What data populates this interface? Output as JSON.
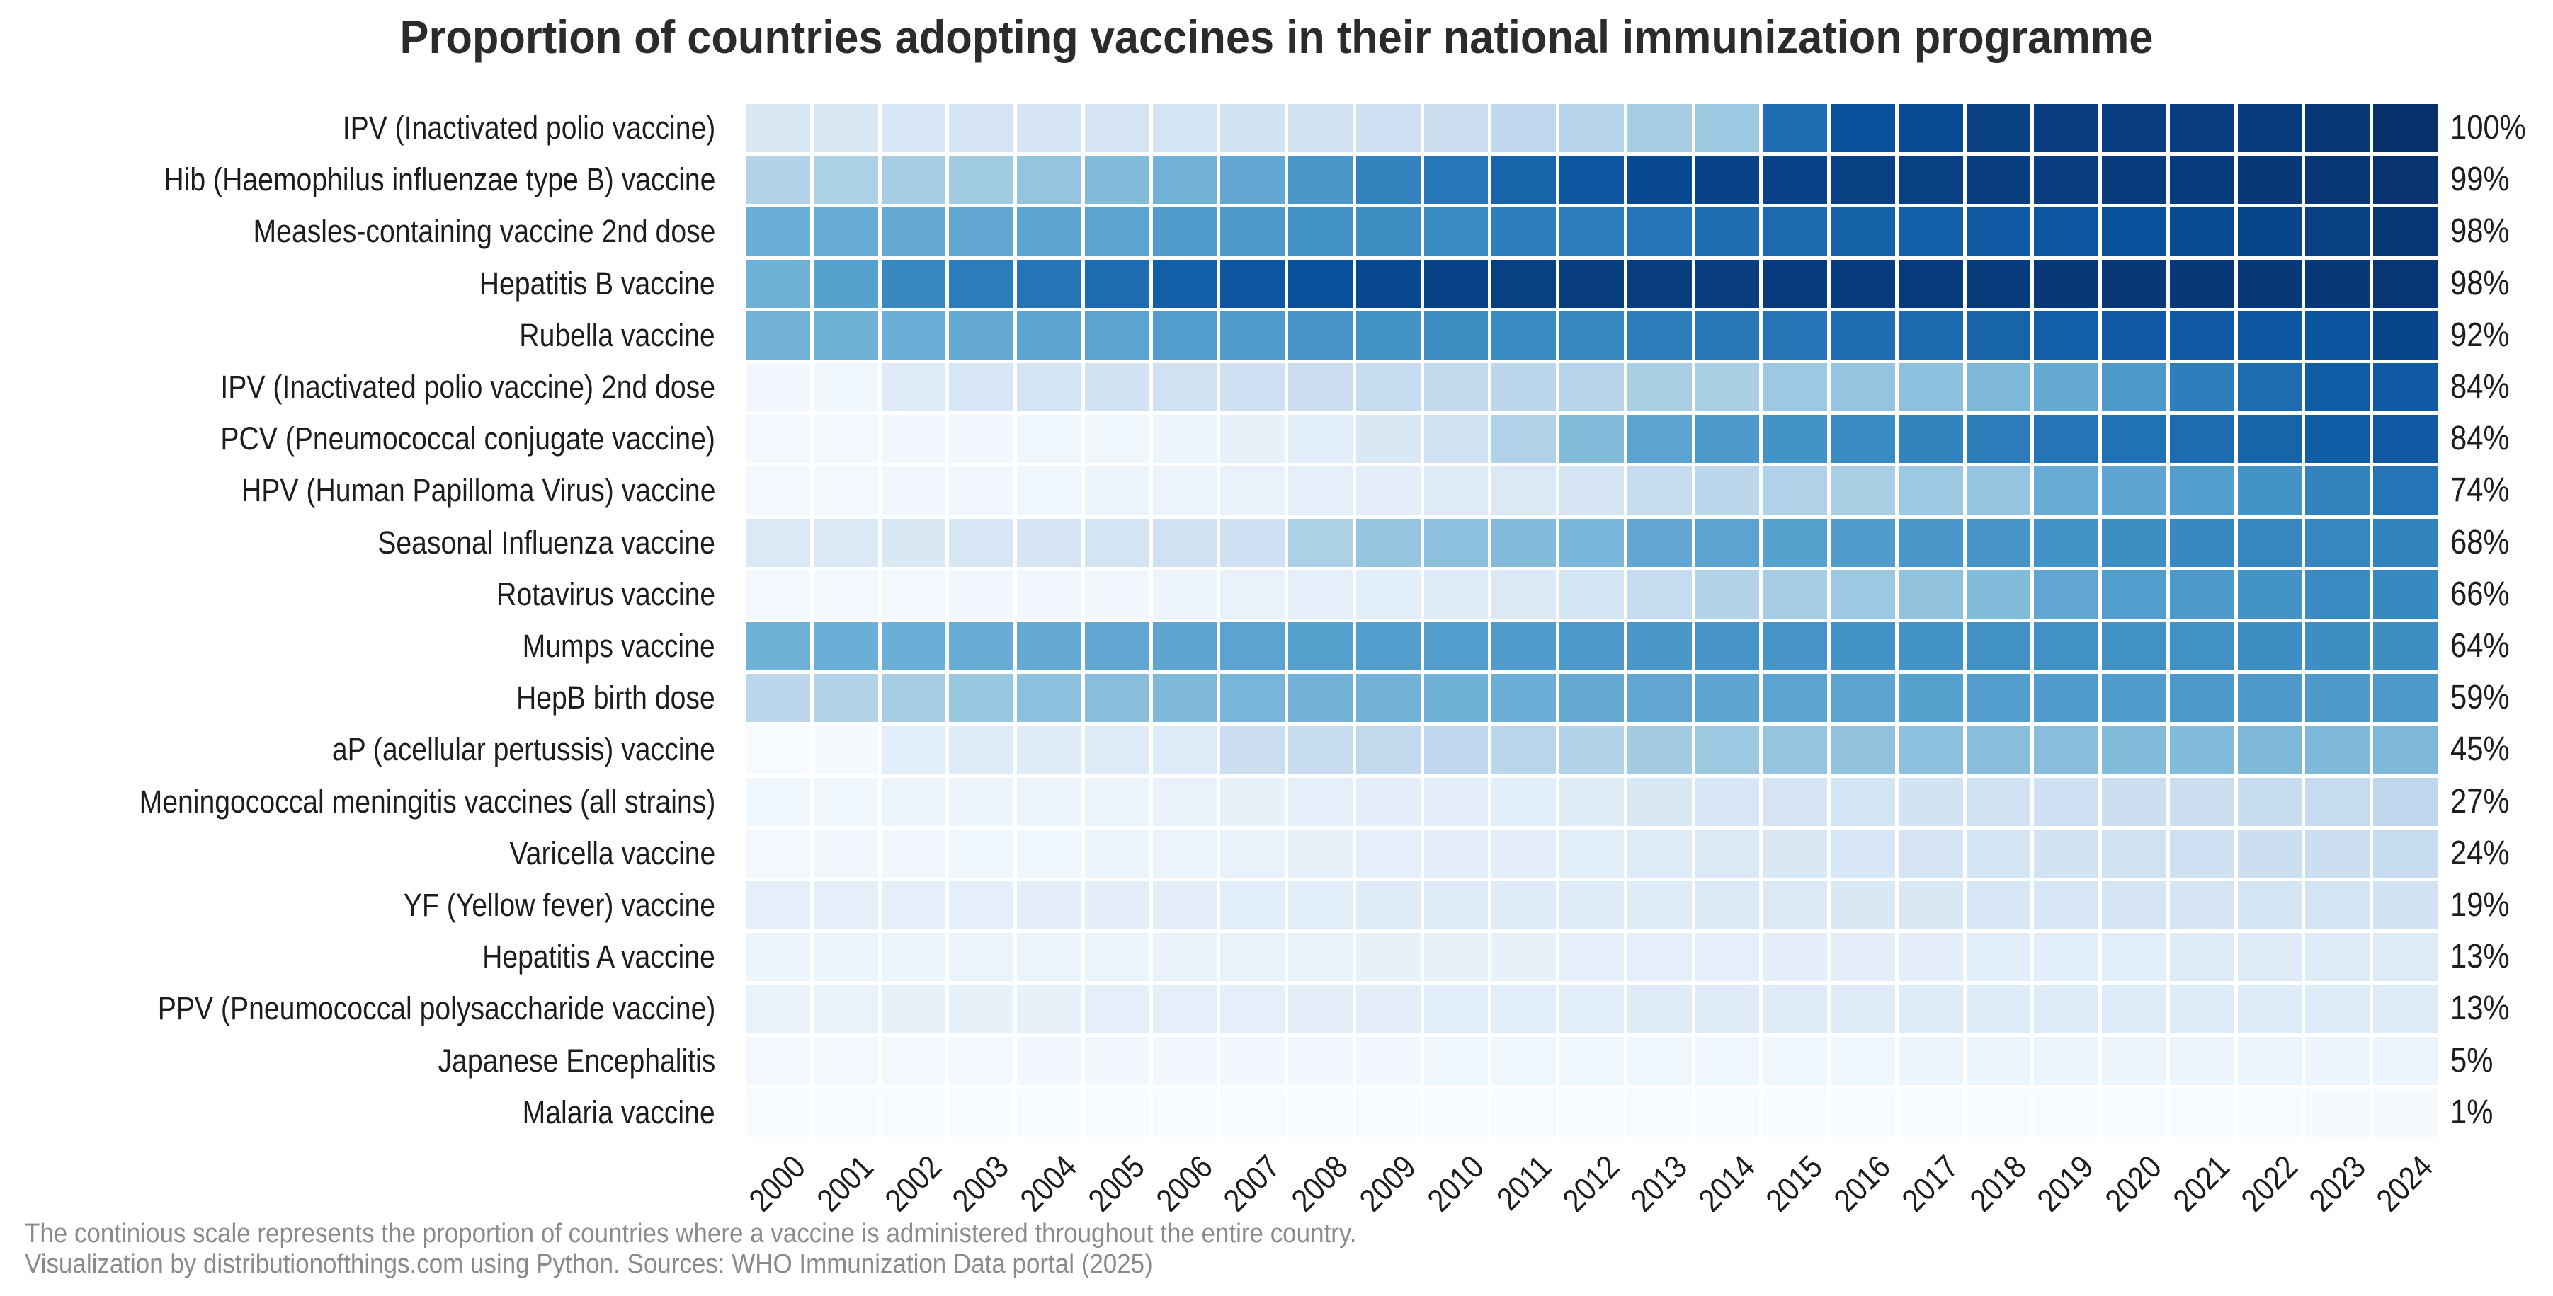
{
  "title": "Proportion of countries adopting vaccines in their national immunization programme",
  "footer": {
    "line1": "The continious scale represents the proportion of countries where a vaccine is administered throughout the entire country.",
    "line2": "Visualization by distributionofthings.com using Python. Sources: WHO Immunization Data portal (2025)"
  },
  "colors": {
    "background": "#ffffff",
    "title_text": "#2b2b2b",
    "label_text": "#1d1d1d",
    "footer_text": "#8a8a8a",
    "cell_gap": "#ffffff"
  },
  "chart_data": {
    "type": "heatmap",
    "title": "Proportion of countries adopting vaccines in their national immunization programme",
    "xlabel": "",
    "ylabel": "",
    "legend_position": "none",
    "grid": false,
    "colormap": "Blues",
    "colormap_stops": [
      [
        247,
        251,
        255
      ],
      [
        222,
        235,
        247
      ],
      [
        198,
        219,
        239
      ],
      [
        158,
        202,
        225
      ],
      [
        107,
        174,
        214
      ],
      [
        66,
        146,
        198
      ],
      [
        33,
        113,
        181
      ],
      [
        8,
        81,
        156
      ],
      [
        8,
        48,
        107
      ]
    ],
    "value_range": [
      0,
      100
    ],
    "x": [
      2000,
      2001,
      2002,
      2003,
      2004,
      2005,
      2006,
      2007,
      2008,
      2009,
      2010,
      2011,
      2012,
      2013,
      2014,
      2015,
      2016,
      2017,
      2018,
      2019,
      2020,
      2021,
      2022,
      2023,
      2024
    ],
    "rows": [
      {
        "label": "IPV (Inactivated polio vaccine)",
        "pct_2024": "100%",
        "values": [
          15,
          15,
          16,
          17,
          17,
          17,
          18,
          19,
          20,
          21,
          23,
          27,
          30,
          35,
          38,
          76,
          88,
          90,
          94,
          95,
          95,
          95,
          96,
          97,
          100
        ]
      },
      {
        "label": "Hib (Haemophilus influenzae type B) vaccine",
        "pct_2024": "99%",
        "values": [
          31,
          33,
          35,
          37,
          40,
          44,
          48,
          53,
          60,
          68,
          73,
          80,
          85,
          91,
          93,
          93,
          94,
          94,
          95,
          95,
          96,
          96,
          97,
          98,
          99
        ]
      },
      {
        "label": "Measles-containing vaccine 2nd dose",
        "pct_2024": "98%",
        "values": [
          50,
          51,
          52,
          53,
          54,
          55,
          58,
          59,
          63,
          64,
          65,
          70,
          71,
          74,
          76,
          78,
          81,
          82,
          84,
          85,
          88,
          90,
          92,
          94,
          98
        ]
      },
      {
        "label": "Hepatitis B vaccine",
        "pct_2024": "98%",
        "values": [
          49,
          56,
          66,
          71,
          74,
          77,
          82,
          85,
          88,
          91,
          93,
          94,
          95,
          95,
          95,
          96,
          96,
          96,
          96,
          97,
          97,
          97,
          97,
          97,
          98
        ]
      },
      {
        "label": "Rubella vaccine",
        "pct_2024": "92%",
        "values": [
          48,
          49,
          50,
          52,
          54,
          55,
          57,
          58,
          61,
          62,
          64,
          65,
          67,
          70,
          72,
          74,
          76,
          78,
          80,
          82,
          84,
          84,
          85,
          86,
          92
        ]
      },
      {
        "label": "IPV (Inactivated polio vaccine) 2nd dose",
        "pct_2024": "84%",
        "values": [
          3,
          4,
          12,
          16,
          18,
          19,
          20,
          21,
          23,
          25,
          26,
          28,
          30,
          34,
          34,
          38,
          40,
          42,
          45,
          52,
          59,
          70,
          77,
          83,
          84
        ]
      },
      {
        "label": "PCV (Pneumococcal conjugate vaccine)",
        "pct_2024": "84%",
        "values": [
          2,
          2,
          3,
          3,
          4,
          4,
          5,
          8,
          11,
          15,
          20,
          32,
          44,
          55,
          59,
          62,
          65,
          68,
          71,
          74,
          75,
          77,
          80,
          83,
          84
        ]
      },
      {
        "label": "HPV (Human Papilloma Virus) vaccine",
        "pct_2024": "74%",
        "values": [
          2,
          2,
          3,
          3,
          4,
          5,
          6,
          7,
          9,
          10,
          12,
          14,
          17,
          24,
          28,
          32,
          34,
          38,
          40,
          51,
          54,
          57,
          62,
          68,
          74
        ]
      },
      {
        "label": "Seasonal Influenza vaccine",
        "pct_2024": "68%",
        "values": [
          14,
          14,
          15,
          16,
          17,
          18,
          20,
          21,
          33,
          40,
          42,
          44,
          46,
          53,
          55,
          56,
          58,
          60,
          61,
          62,
          64,
          66,
          67,
          67,
          68
        ]
      },
      {
        "label": "Rotavirus vaccine",
        "pct_2024": "66%",
        "values": [
          2,
          2,
          2,
          3,
          3,
          3,
          5,
          7,
          9,
          11,
          13,
          14,
          18,
          25,
          31,
          35,
          38,
          41,
          44,
          53,
          57,
          59,
          62,
          65,
          66
        ]
      },
      {
        "label": "Mumps vaccine",
        "pct_2024": "64%",
        "values": [
          49,
          50,
          50,
          51,
          52,
          53,
          54,
          55,
          56,
          57,
          57,
          58,
          59,
          60,
          61,
          61,
          62,
          62,
          63,
          63,
          63,
          63,
          64,
          64,
          64
        ]
      },
      {
        "label": "HepB birth dose",
        "pct_2024": "59%",
        "values": [
          28,
          31,
          35,
          39,
          42,
          43,
          45,
          47,
          48,
          48,
          49,
          50,
          52,
          53,
          54,
          55,
          55,
          56,
          57,
          58,
          58,
          59,
          59,
          59,
          59
        ]
      },
      {
        "label": "aP (acellular pertussis) vaccine",
        "pct_2024": "45%",
        "values": [
          0,
          1,
          11,
          12,
          12,
          13,
          13,
          23,
          24,
          26,
          27,
          29,
          31,
          36,
          38,
          40,
          41,
          42,
          43,
          43,
          44,
          44,
          45,
          45,
          45
        ]
      },
      {
        "label": "Meningococcal meningitis vaccines (all strains)",
        "pct_2024": "27%",
        "values": [
          4,
          4,
          5,
          5,
          6,
          6,
          7,
          8,
          9,
          10,
          10,
          11,
          12,
          15,
          16,
          17,
          18,
          19,
          20,
          21,
          22,
          23,
          24,
          25,
          27
        ]
      },
      {
        "label": "Varicella vaccine",
        "pct_2024": "24%",
        "values": [
          2,
          3,
          3,
          4,
          4,
          5,
          6,
          7,
          8,
          9,
          10,
          10,
          11,
          13,
          14,
          15,
          16,
          17,
          18,
          19,
          20,
          21,
          22,
          23,
          24
        ]
      },
      {
        "label": "YF (Yellow fever) vaccine",
        "pct_2024": "19%",
        "values": [
          9,
          9,
          9,
          9,
          10,
          10,
          10,
          11,
          11,
          12,
          12,
          12,
          13,
          13,
          14,
          14,
          15,
          15,
          16,
          16,
          17,
          17,
          18,
          18,
          19
        ]
      },
      {
        "label": "Hepatitis A vaccine",
        "pct_2024": "13%",
        "values": [
          5,
          5,
          5,
          6,
          6,
          6,
          7,
          7,
          7,
          8,
          8,
          8,
          9,
          9,
          9,
          10,
          10,
          10,
          11,
          11,
          11,
          12,
          12,
          12,
          13
        ]
      },
      {
        "label": "PPV (Pneumococcal polysaccharide vaccine)",
        "pct_2024": "13%",
        "values": [
          7,
          7,
          8,
          8,
          8,
          9,
          9,
          9,
          10,
          10,
          11,
          11,
          11,
          12,
          12,
          12,
          12,
          13,
          13,
          13,
          13,
          13,
          13,
          13,
          13
        ]
      },
      {
        "label": "Japanese Encephalitis",
        "pct_2024": "5%",
        "values": [
          2,
          2,
          2,
          2,
          3,
          3,
          3,
          3,
          3,
          3,
          4,
          4,
          4,
          4,
          4,
          4,
          4,
          5,
          5,
          5,
          5,
          5,
          5,
          5,
          5
        ]
      },
      {
        "label": "Malaria vaccine",
        "pct_2024": "1%",
        "values": [
          0,
          0,
          0,
          0,
          0,
          0,
          0,
          0,
          0,
          0,
          0,
          0,
          0,
          0,
          0,
          0,
          0,
          0,
          0,
          0,
          0,
          0,
          0,
          1,
          1
        ]
      }
    ]
  }
}
